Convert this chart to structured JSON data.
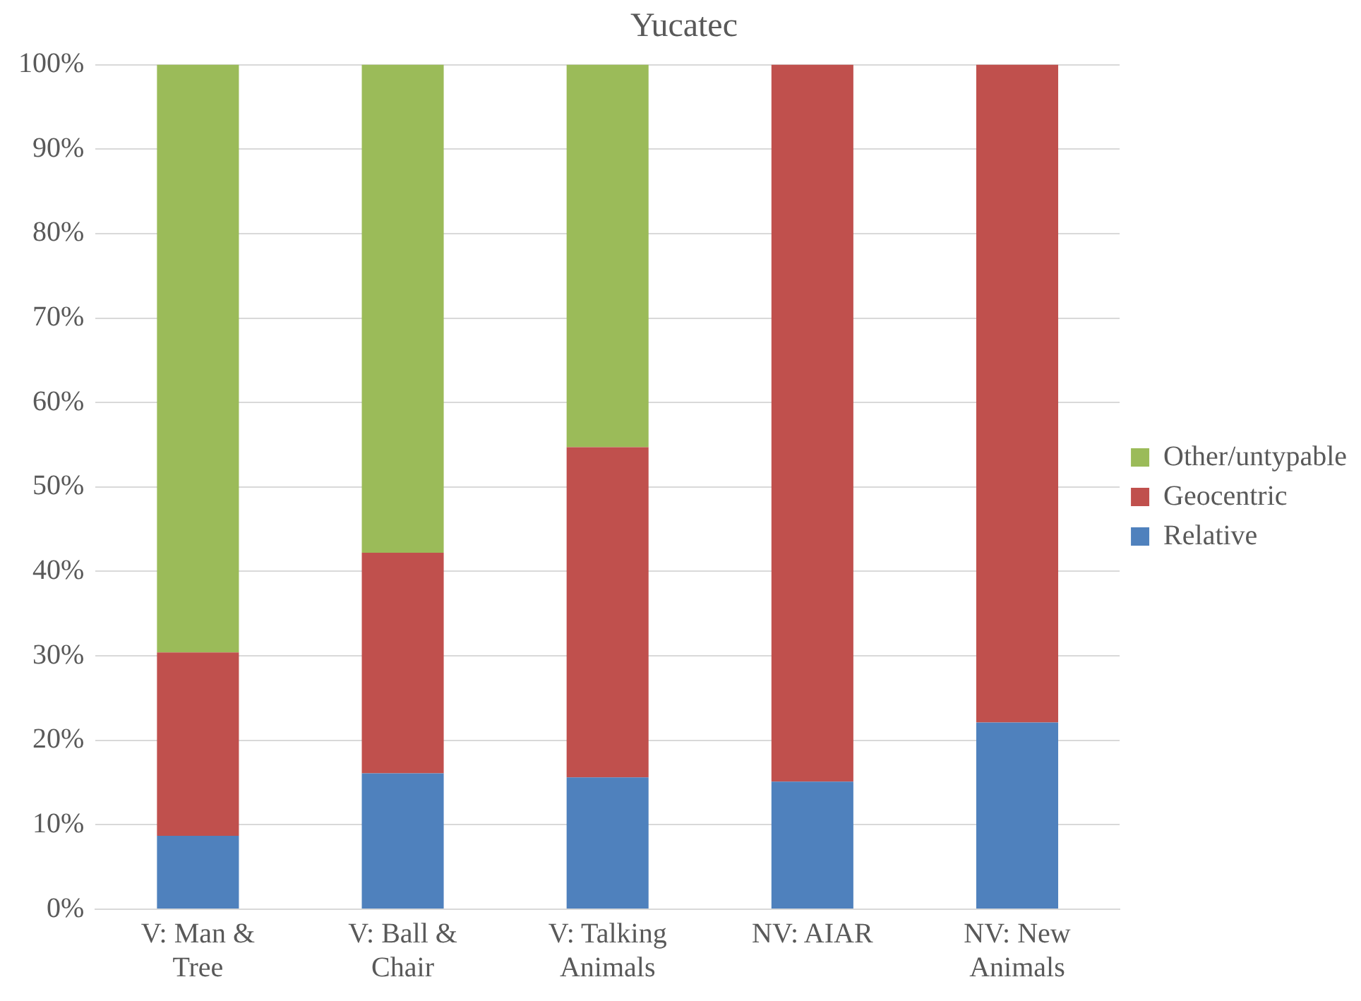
{
  "chart_data": {
    "type": "bar",
    "title": "Yucatec",
    "stacked": true,
    "categories": [
      "V: Man & Tree",
      "V: Ball & Chair",
      "V: Talking Animals",
      "NV: AIAR",
      "NV: New Animals"
    ],
    "series": [
      {
        "name": "Relative",
        "color": "#4f81bd",
        "values": [
          8.7,
          16.1,
          15.6,
          15.1,
          22.1
        ]
      },
      {
        "name": "Geocentric",
        "color": "#c0504d",
        "values": [
          21.7,
          26.1,
          39.1,
          84.9,
          77.9
        ]
      },
      {
        "name": "Other/untypable",
        "color": "#9bbb59",
        "values": [
          69.6,
          57.8,
          45.3,
          0,
          0
        ]
      }
    ],
    "ylim": [
      0,
      100
    ],
    "yticks": [
      {
        "value": 0,
        "label": "0%"
      },
      {
        "value": 10,
        "label": "10%"
      },
      {
        "value": 20,
        "label": "20%"
      },
      {
        "value": 30,
        "label": "30%"
      },
      {
        "value": 40,
        "label": "40%"
      },
      {
        "value": 50,
        "label": "50%"
      },
      {
        "value": 60,
        "label": "60%"
      },
      {
        "value": 70,
        "label": "70%"
      },
      {
        "value": 80,
        "label": "80%"
      },
      {
        "value": 90,
        "label": "90%"
      },
      {
        "value": 100,
        "label": "100%"
      }
    ],
    "grid": "y",
    "legend": "right"
  }
}
